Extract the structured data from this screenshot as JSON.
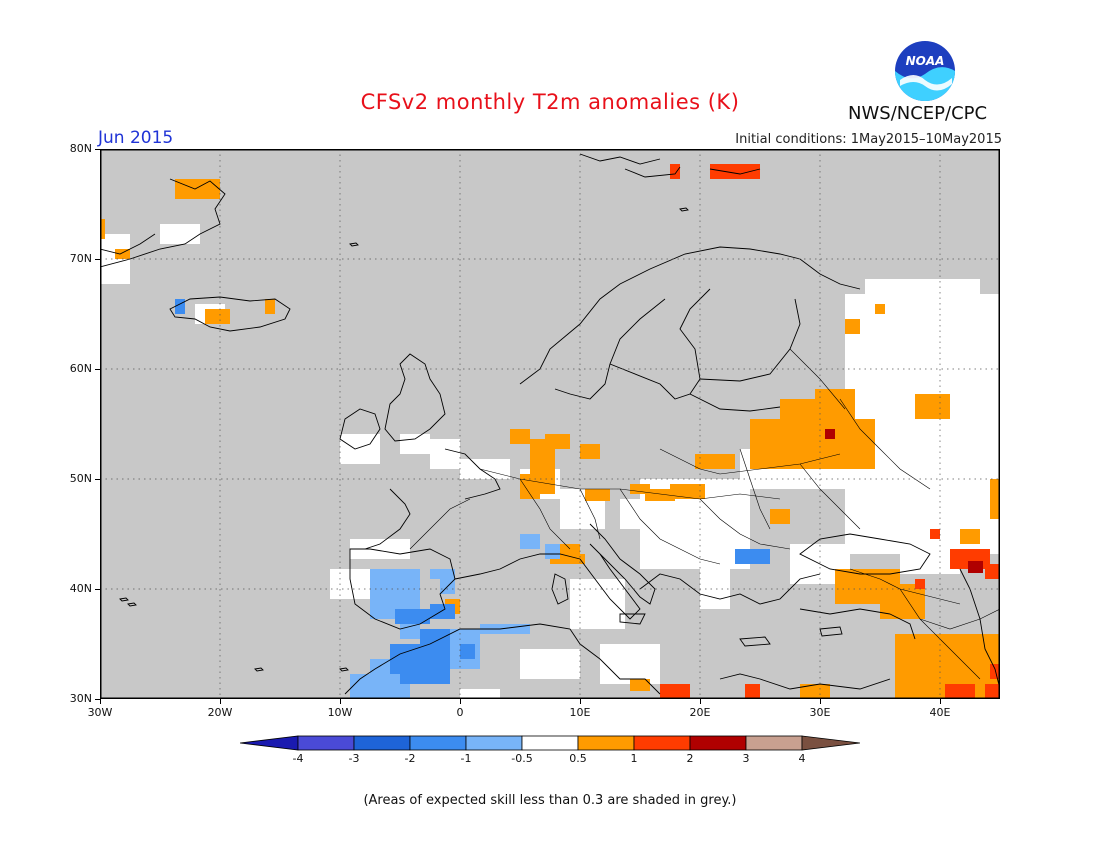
{
  "title": "CFSv2 monthly T2m anomalies (K)",
  "month_label": "Jun 2015",
  "initial_conditions": "Initial conditions: 1May2015–10May2015",
  "agency": "NWS/NCEP/CPC",
  "logo_text": "NOAA",
  "footnote": "(Areas of expected skill less than 0.3 are shaded in grey.)",
  "map": {
    "lat_labels": [
      "80N",
      "70N",
      "60N",
      "50N",
      "40N",
      "30N"
    ],
    "lon_labels": [
      "30W",
      "20W",
      "10W",
      "0",
      "10E",
      "20E",
      "30E",
      "40E"
    ],
    "grey_color": "#c8c8c8"
  },
  "colorbar": {
    "labels": [
      "-4",
      "-3",
      "-2",
      "-1",
      "-0.5",
      "0.5",
      "1",
      "2",
      "3",
      "4"
    ],
    "colors": [
      "#1a1ab0",
      "#4a4ad6",
      "#1e64d8",
      "#3c8cf0",
      "#78b4f8",
      "#ffffff",
      "#ff9b00",
      "#ff3c00",
      "#b00000",
      "#c8a090",
      "#7a5040"
    ]
  }
}
